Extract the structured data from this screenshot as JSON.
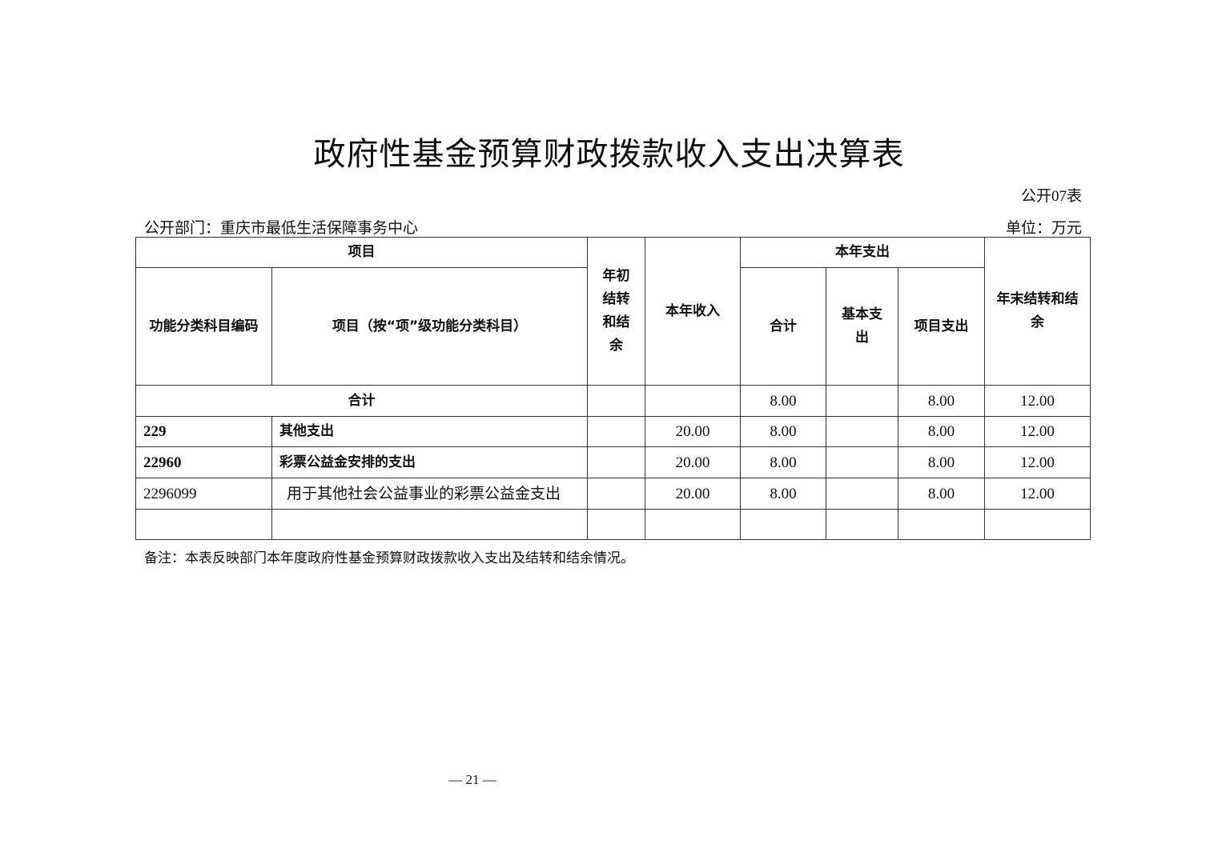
{
  "title": "政府性基金预算财政拨款收入支出决算表",
  "form_no": "公开07表",
  "department": "公开部门：重庆市最低生活保障事务中心",
  "unit": "单位：万元",
  "headers": {
    "item": "项目",
    "code": "功能分类科目编码",
    "name": "项目（按“项”级功能分类科目）",
    "opening": "年初结转和结余",
    "income": "本年收入",
    "expense": "本年支出",
    "exp_total": "合计",
    "exp_basic": "基本支出",
    "exp_project": "项目支出",
    "closing": "年末结转和结余"
  },
  "total": {
    "label": "合计",
    "opening": "",
    "income": "",
    "exp_total": "8.00",
    "exp_basic": "",
    "exp_project": "8.00",
    "closing": "12.00"
  },
  "rows": [
    {
      "code": "229",
      "name": "其他支出",
      "opening": "",
      "income": "20.00",
      "exp_total": "8.00",
      "exp_basic": "",
      "exp_project": "8.00",
      "closing": "12.00",
      "bold": true
    },
    {
      "code": "22960",
      "name": "彩票公益金安排的支出",
      "opening": "",
      "income": "20.00",
      "exp_total": "8.00",
      "exp_basic": "",
      "exp_project": "8.00",
      "closing": "12.00",
      "bold": true
    },
    {
      "code": "2296099",
      "name": "用于其他社会公益事业的彩票公益金支出",
      "opening": "",
      "income": "20.00",
      "exp_total": "8.00",
      "exp_basic": "",
      "exp_project": "8.00",
      "closing": "12.00",
      "bold": false
    }
  ],
  "note": "备注：本表反映部门本年度政府性基金预算财政拨款收入支出及结转和结余情况。",
  "page_number": "— 21 —"
}
